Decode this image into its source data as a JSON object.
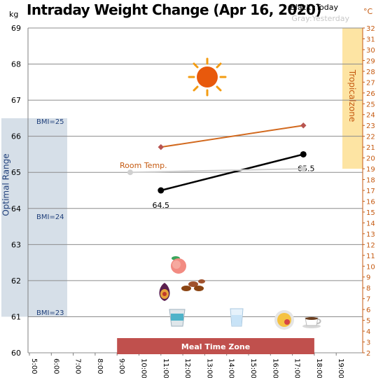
{
  "title": "Intraday Weight Change (Apr 16, 2020)",
  "legend": {
    "today": "Black :Today",
    "yesterday": "Gray:Yesterday"
  },
  "units": {
    "left": "kg",
    "right": "°C"
  },
  "labels": {
    "optimal_range": "Optimal Range",
    "tropical_zone": "Tropicalzone",
    "room_temp": "Room Temp.",
    "meal_time_zone": "Meal Time Zone",
    "bmi_25": "BMI=25",
    "bmi_24": "BMI=24",
    "bmi_23": "BMI=23"
  },
  "chart_data": {
    "type": "line",
    "x_ticks": [
      "5:00",
      "6:00",
      "7:00",
      "8:00",
      "9:00",
      "10:00",
      "11:00",
      "12:00",
      "13:00",
      "14:00",
      "15:00",
      "16:00",
      "17:00",
      "18:00",
      "19:00"
    ],
    "left_ylim": [
      60,
      69
    ],
    "left_ticks": [
      60,
      61,
      62,
      63,
      64,
      65,
      66,
      67,
      68,
      69
    ],
    "right_ylim": [
      2,
      32
    ],
    "right_ticks": [
      2,
      3,
      4,
      5,
      6,
      7,
      8,
      9,
      10,
      11,
      12,
      13,
      14,
      15,
      16,
      17,
      18,
      19,
      20,
      21,
      22,
      23,
      24,
      25,
      26,
      27,
      28,
      29,
      30,
      31,
      32
    ],
    "series": [
      {
        "name": "Today",
        "axis": "left",
        "color": "#000000",
        "points": [
          {
            "x": 11.0,
            "y": 64.5,
            "label": "64.5"
          },
          {
            "x": 17.5,
            "y": 65.5,
            "label": "65.5"
          }
        ]
      },
      {
        "name": "Yesterday",
        "axis": "left",
        "color": "#d0d0d0",
        "points": [
          {
            "x": 9.6,
            "y": 65.0
          },
          {
            "x": 17.5,
            "y": 65.1
          }
        ]
      },
      {
        "name": "Room Temp.",
        "axis": "right",
        "color": "#d2691e",
        "points": [
          {
            "x": 11.0,
            "y": 21.0
          },
          {
            "x": 17.5,
            "y": 23.0
          }
        ]
      }
    ],
    "bands": {
      "optimal_range": {
        "kg": [
          61.0,
          66.5
        ]
      },
      "tropical_zone": {
        "celsius": [
          19,
          32
        ]
      },
      "meal_time_zone": {
        "x": [
          9.0,
          18.0
        ]
      }
    },
    "bmi_marks": [
      {
        "label": "BMI=25",
        "kg": 65.5
      },
      {
        "label": "BMI=24",
        "kg": 63.8
      },
      {
        "label": "BMI=23",
        "kg": 61.0
      }
    ]
  },
  "icons": [
    "sun-icon",
    "peach-icon",
    "fig-icon",
    "dates-icon",
    "yogurt-icon",
    "water-glass-icon",
    "plate-icon",
    "coffee-icon"
  ]
}
